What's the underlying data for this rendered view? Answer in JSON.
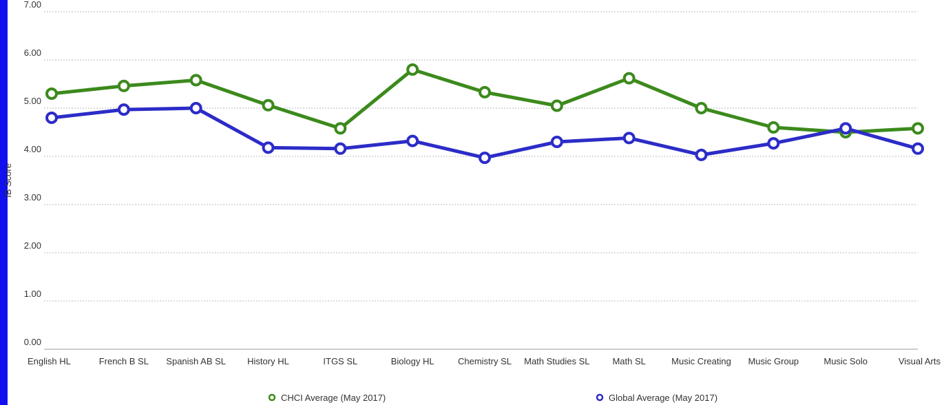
{
  "chart_data": {
    "type": "line",
    "title": "",
    "xlabel": "",
    "ylabel": "IB Score",
    "ylim": [
      0,
      7
    ],
    "yticks": [
      "0.00",
      "1.00",
      "2.00",
      "3.00",
      "4.00",
      "5.00",
      "6.00",
      "7.00"
    ],
    "grid": true,
    "legend_position": "bottom",
    "categories": [
      "English HL",
      "French B SL",
      "Spanish AB SL",
      "History HL",
      "ITGS SL",
      "Biology HL",
      "Chemistry SL",
      "Math Studies SL",
      "Math SL",
      "Music Creating",
      "Music Group",
      "Music Solo",
      "Visual Arts"
    ],
    "series": [
      {
        "name": "CHCI Average (May 2017)",
        "color": "#3c8a1c",
        "values": [
          5.3,
          5.46,
          5.58,
          5.06,
          4.58,
          5.8,
          5.33,
          5.05,
          5.62,
          5.0,
          4.6,
          4.5,
          4.58
        ]
      },
      {
        "name": "Global Average (May 2017)",
        "color": "#2c2cc8",
        "values": [
          4.8,
          4.97,
          5.0,
          4.18,
          4.16,
          4.32,
          3.97,
          4.3,
          4.38,
          4.03,
          4.27,
          4.58,
          4.16
        ]
      }
    ]
  },
  "page": {
    "left_bar_color": "#1010f0"
  }
}
